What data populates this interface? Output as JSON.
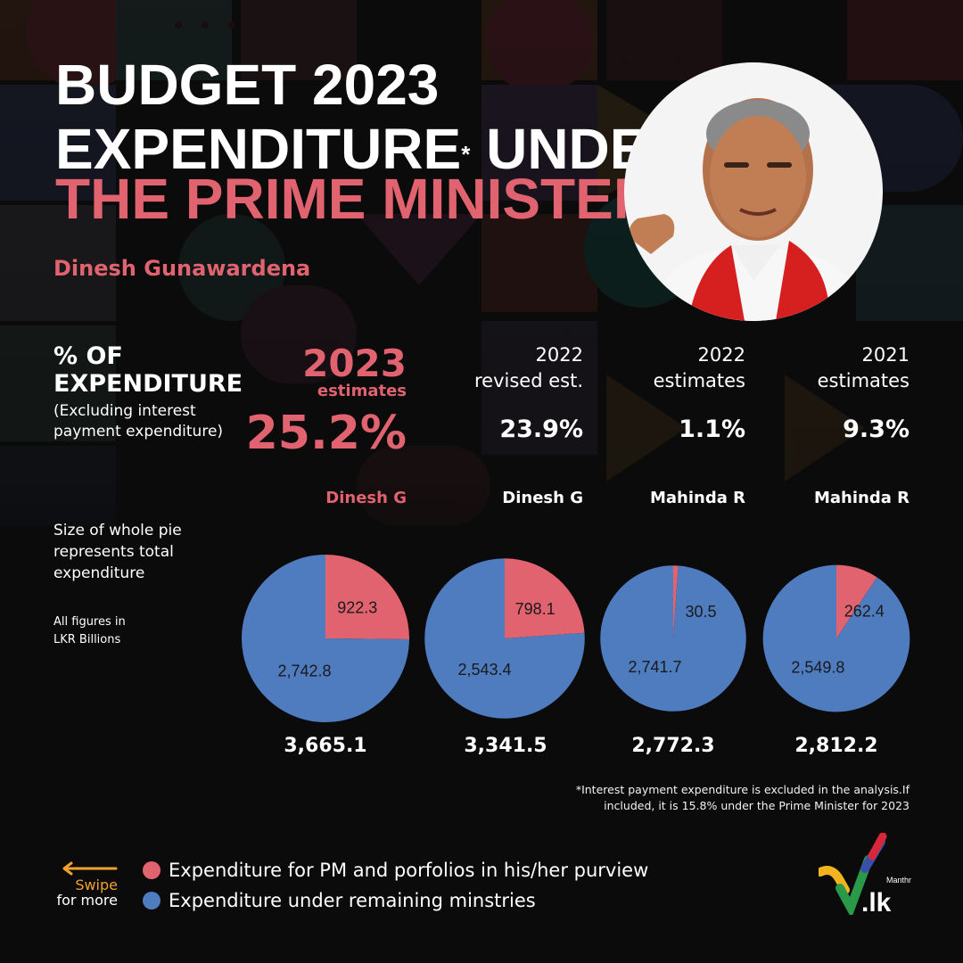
{
  "title": {
    "line1": "BUDGET 2023",
    "line2": "EXPENDITURE",
    "line2_mark": "*",
    "line2_tail": " UNDER",
    "line3": "THE PRIME MINISTER"
  },
  "subtitle": "Dinesh Gunawardena",
  "metric": {
    "label_line1": "% OF",
    "label_line2": "EXPENDITURE",
    "note_line1": "(Excluding interest",
    "note_line2": "payment expenditure)"
  },
  "columns": [
    {
      "head_line1": "2023",
      "head_line2": "estimates",
      "pct": "25.2%",
      "who": "Dinesh G",
      "total": "3,665.1"
    },
    {
      "head_line1": "2022",
      "head_line2": "revised est.",
      "pct": "23.9%",
      "who": "Dinesh G",
      "total": "3,341.5"
    },
    {
      "head_line1": "2022",
      "head_line2": "estimates",
      "pct": "1.1%",
      "who": "Mahinda R",
      "total": "2,772.3"
    },
    {
      "head_line1": "2021",
      "head_line2": "estimates",
      "pct": "9.3%",
      "who": "Mahinda R",
      "total": "2,812.2"
    }
  ],
  "notes": {
    "pie_size_line1": "Size of whole pie",
    "pie_size_line2": "represents total",
    "pie_size_line3": "expenditure",
    "units_line1": "All figures in",
    "units_line2": "LKR Billions"
  },
  "footnote": {
    "line1": "*Interest payment expenditure is excluded in the analysis.If",
    "line2": "included, it is 15.8% under the Prime Minister for 2023"
  },
  "legend": {
    "pm": "Expenditure for PM and porfolios in his/her purview",
    "rest": "Expenditure under remaining minstries"
  },
  "swipe": {
    "line1": "Swipe",
    "line2": "for more"
  },
  "logo": {
    "small": "Manthri",
    "big": ".lk"
  },
  "colors": {
    "pink": "#e0636f",
    "blue": "#4f7bbf",
    "orange": "#f2a12e",
    "background": "#0b0b0c"
  },
  "chart_data": {
    "type": "pie",
    "title": "BUDGET 2023 EXPENDITURE UNDER THE PRIME MINISTER",
    "subtitle": "Dinesh Gunawardena",
    "units": "LKR Billions",
    "series": [
      {
        "name": "Expenditure for PM and porfolios in his/her purview",
        "color": "#e0636f"
      },
      {
        "name": "Expenditure under remaining minstries",
        "color": "#4f7bbf"
      }
    ],
    "pies": [
      {
        "label": "2023 estimates",
        "who": "Dinesh G",
        "pct": 25.2,
        "values": [
          922.3,
          2742.8
        ],
        "value_labels": [
          "922.3",
          "2,742.8"
        ],
        "total": 3665.1
      },
      {
        "label": "2022 revised est.",
        "who": "Dinesh G",
        "pct": 23.9,
        "values": [
          798.1,
          2543.4
        ],
        "value_labels": [
          "798.1",
          "2,543.4"
        ],
        "total": 3341.5
      },
      {
        "label": "2022 estimates",
        "who": "Mahinda R",
        "pct": 1.1,
        "values": [
          30.5,
          2741.7
        ],
        "value_labels": [
          "30.5",
          "2,741.7"
        ],
        "total": 2772.3
      },
      {
        "label": "2021 estimates",
        "who": "Mahinda R",
        "pct": 9.3,
        "values": [
          262.4,
          2549.8
        ],
        "value_labels": [
          "262.4",
          "2,549.8"
        ],
        "total": 2812.2
      }
    ]
  }
}
